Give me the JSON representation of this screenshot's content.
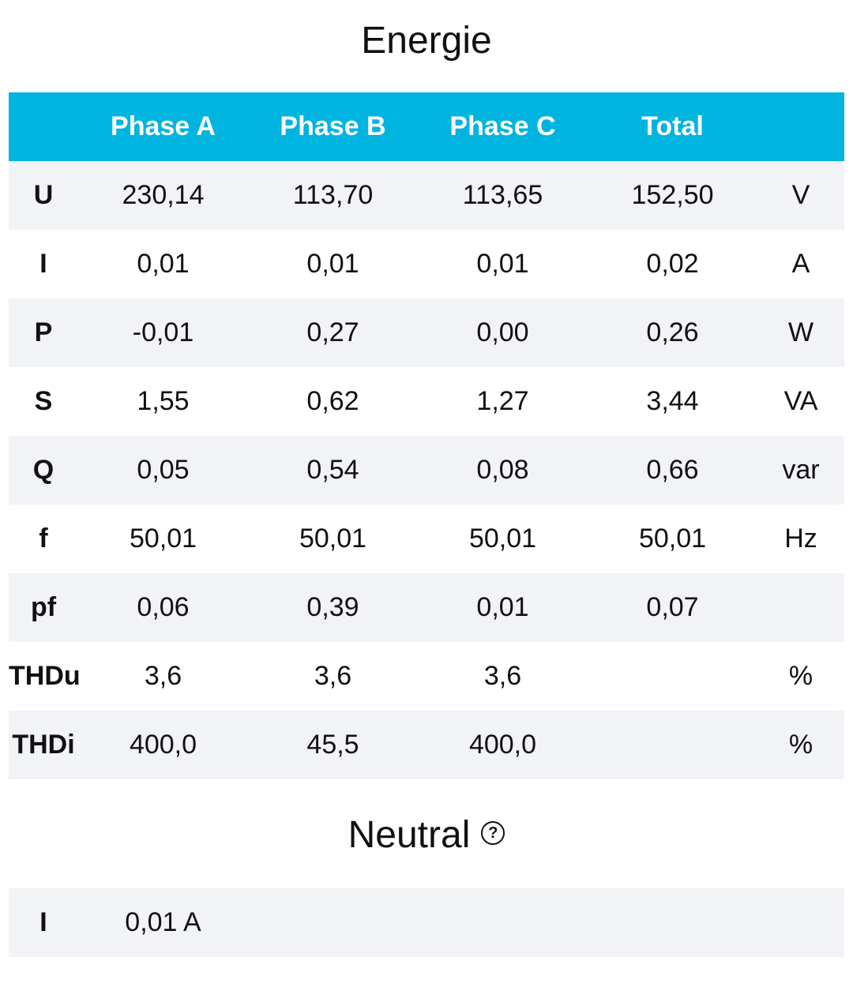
{
  "title": "Energie",
  "table": {
    "headers": [
      "",
      "Phase A",
      "Phase B",
      "Phase C",
      "Total",
      ""
    ],
    "rows": [
      {
        "label": "U",
        "a": "230,14",
        "b": "113,70",
        "c": "113,65",
        "total": "152,50",
        "unit": "V"
      },
      {
        "label": "I",
        "a": "0,01",
        "b": "0,01",
        "c": "0,01",
        "total": "0,02",
        "unit": "A"
      },
      {
        "label": "P",
        "a": "-0,01",
        "b": "0,27",
        "c": "0,00",
        "total": "0,26",
        "unit": "W"
      },
      {
        "label": "S",
        "a": "1,55",
        "b": "0,62",
        "c": "1,27",
        "total": "3,44",
        "unit": "VA"
      },
      {
        "label": "Q",
        "a": "0,05",
        "b": "0,54",
        "c": "0,08",
        "total": "0,66",
        "unit": "var"
      },
      {
        "label": "f",
        "a": "50,01",
        "b": "50,01",
        "c": "50,01",
        "total": "50,01",
        "unit": "Hz"
      },
      {
        "label": "pf",
        "a": "0,06",
        "b": "0,39",
        "c": "0,01",
        "total": "0,07",
        "unit": ""
      },
      {
        "label": "THDu",
        "a": "3,6",
        "b": "3,6",
        "c": "3,6",
        "total": "",
        "unit": "%"
      },
      {
        "label": "THDi",
        "a": "400,0",
        "b": "45,5",
        "c": "400,0",
        "total": "",
        "unit": "%"
      }
    ]
  },
  "neutral": {
    "title": "Neutral",
    "help_icon": "question-circle-icon",
    "label": "I",
    "value": "0,01 A"
  },
  "colors": {
    "header_bg": "#00b4e0",
    "header_text": "#ffffff",
    "row_alt_bg": "#f2f3f7"
  }
}
